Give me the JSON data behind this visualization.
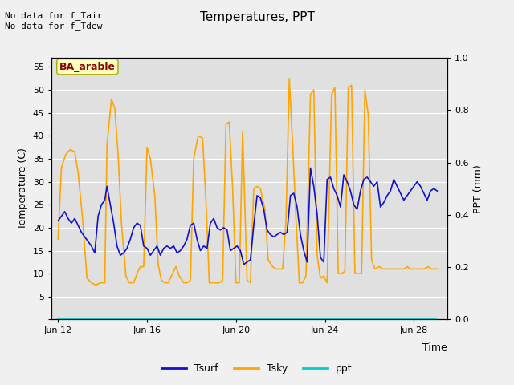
{
  "title": "Temperatures, PPT",
  "xlabel": "Time",
  "ylabel_left": "Temperature (C)",
  "ylabel_right": "PPT (mm)",
  "annotation_text": "No data for f_Tair\nNo data for f_Tdew",
  "box_label": "BA_arable",
  "ylim_left": [
    0,
    57
  ],
  "ylim_right": [
    0.0,
    1.0
  ],
  "yticks_left": [
    0,
    5,
    10,
    15,
    20,
    25,
    30,
    35,
    40,
    45,
    50,
    55
  ],
  "yticks_right": [
    0.0,
    0.2,
    0.4,
    0.6,
    0.8,
    1.0
  ],
  "color_tsurf": "#1111CC",
  "color_tsky": "#FFA500",
  "color_ppt": "#00CCCC",
  "legend_labels": [
    "Tsurf",
    "Tsky",
    "ppt"
  ],
  "background_color": "#f0f0f0",
  "plot_bg_color": "#e0e0e0",
  "grid_color": "#ffffff",
  "xtick_labels": [
    "Jun 12",
    "Jun 16",
    "Jun 20",
    "Jun 24",
    "Jun 28"
  ],
  "xtick_positions": [
    0,
    4,
    8,
    12,
    16
  ],
  "xlim": [
    -0.3,
    17.5
  ],
  "tsky_x": [
    0.0,
    0.15,
    0.35,
    0.55,
    0.75,
    0.9,
    1.1,
    1.3,
    1.5,
    1.7,
    1.9,
    2.1,
    2.2,
    2.4,
    2.55,
    2.7,
    2.85,
    3.05,
    3.2,
    3.4,
    3.55,
    3.7,
    3.85,
    4.0,
    4.15,
    4.35,
    4.5,
    4.65,
    4.8,
    4.95,
    5.1,
    5.3,
    5.45,
    5.65,
    5.8,
    5.95,
    6.1,
    6.3,
    6.5,
    6.65,
    6.8,
    6.95,
    7.1,
    7.25,
    7.4,
    7.55,
    7.7,
    7.85,
    8.0,
    8.15,
    8.3,
    8.5,
    8.65,
    8.8,
    8.95,
    9.1,
    9.3,
    9.45,
    9.65,
    9.8,
    9.95,
    10.1,
    10.25,
    10.4,
    10.55,
    10.7,
    10.85,
    11.0,
    11.15,
    11.35,
    11.5,
    11.65,
    11.8,
    11.95,
    12.1,
    12.3,
    12.45,
    12.6,
    12.75,
    12.9,
    13.05,
    13.2,
    13.35,
    13.5,
    13.65,
    13.8,
    13.95,
    14.1,
    14.25,
    14.45,
    14.6,
    14.75,
    14.9,
    15.05,
    15.2,
    15.4,
    15.55,
    15.7,
    15.85,
    16.0,
    16.15,
    16.3,
    16.45,
    16.65,
    16.8,
    16.95,
    17.1
  ],
  "tsky_y": [
    17.5,
    33.0,
    36.0,
    37.0,
    36.5,
    32.0,
    22.0,
    9.0,
    8.0,
    7.5,
    8.0,
    8.0,
    38.0,
    48.0,
    46.0,
    36.0,
    21.0,
    9.5,
    8.0,
    8.0,
    10.0,
    11.5,
    11.5,
    37.5,
    35.0,
    27.0,
    12.0,
    8.5,
    8.0,
    8.0,
    9.5,
    11.5,
    9.5,
    8.0,
    8.0,
    8.5,
    35.0,
    40.0,
    39.5,
    26.0,
    8.0,
    8.0,
    8.0,
    8.0,
    8.5,
    42.5,
    43.0,
    28.5,
    8.0,
    8.0,
    41.0,
    8.5,
    8.0,
    28.5,
    29.0,
    28.5,
    24.0,
    13.0,
    11.5,
    11.0,
    11.0,
    11.0,
    21.5,
    52.5,
    38.0,
    22.0,
    8.0,
    8.0,
    9.5,
    49.0,
    50.0,
    14.0,
    9.0,
    9.5,
    8.0,
    49.0,
    50.5,
    10.0,
    10.0,
    10.5,
    50.5,
    51.0,
    10.0,
    10.0,
    10.0,
    50.0,
    44.5,
    13.0,
    11.0,
    11.5,
    11.0,
    11.0,
    11.0,
    11.0,
    11.0,
    11.0,
    11.0,
    11.5,
    11.0,
    11.0,
    11.0,
    11.0,
    11.0,
    11.5,
    11.0,
    11.0,
    11.0
  ],
  "tsurf_x": [
    0.0,
    0.15,
    0.3,
    0.45,
    0.6,
    0.75,
    0.9,
    1.05,
    1.2,
    1.35,
    1.5,
    1.65,
    1.8,
    1.95,
    2.1,
    2.2,
    2.35,
    2.5,
    2.65,
    2.8,
    2.95,
    3.1,
    3.25,
    3.4,
    3.55,
    3.7,
    3.85,
    4.0,
    4.15,
    4.3,
    4.45,
    4.6,
    4.75,
    4.9,
    5.05,
    5.2,
    5.35,
    5.5,
    5.65,
    5.8,
    5.95,
    6.1,
    6.25,
    6.4,
    6.55,
    6.7,
    6.85,
    7.0,
    7.15,
    7.3,
    7.45,
    7.6,
    7.75,
    7.9,
    8.05,
    8.2,
    8.35,
    8.5,
    8.65,
    8.8,
    8.95,
    9.1,
    9.25,
    9.4,
    9.55,
    9.7,
    9.85,
    10.0,
    10.15,
    10.3,
    10.45,
    10.6,
    10.75,
    10.9,
    11.05,
    11.2,
    11.35,
    11.5,
    11.65,
    11.8,
    11.95,
    12.1,
    12.25,
    12.4,
    12.55,
    12.7,
    12.85,
    13.0,
    13.15,
    13.3,
    13.45,
    13.6,
    13.75,
    13.9,
    14.05,
    14.2,
    14.35,
    14.5,
    14.65,
    14.8,
    14.95,
    15.1,
    15.25,
    15.4,
    15.55,
    15.7,
    15.85,
    16.0,
    16.15,
    16.3,
    16.45,
    16.6,
    16.75,
    16.9,
    17.05
  ],
  "tsurf_y": [
    21.5,
    22.5,
    23.5,
    22.0,
    21.0,
    22.0,
    20.5,
    19.0,
    18.0,
    17.0,
    16.0,
    14.5,
    22.5,
    25.0,
    26.0,
    29.0,
    25.0,
    21.0,
    16.0,
    14.0,
    14.5,
    15.5,
    17.5,
    20.0,
    21.0,
    20.5,
    16.0,
    15.5,
    14.0,
    15.0,
    16.0,
    14.0,
    15.5,
    16.0,
    15.5,
    16.0,
    14.5,
    15.0,
    16.0,
    17.5,
    20.5,
    21.0,
    17.5,
    15.0,
    16.0,
    15.5,
    21.0,
    22.0,
    20.0,
    19.5,
    20.0,
    19.5,
    15.0,
    15.5,
    16.0,
    15.0,
    12.0,
    12.5,
    13.0,
    20.5,
    27.0,
    26.5,
    24.0,
    19.5,
    18.5,
    18.0,
    18.5,
    19.0,
    18.5,
    19.0,
    27.0,
    27.5,
    24.5,
    18.5,
    15.0,
    12.5,
    33.0,
    29.0,
    23.0,
    13.5,
    12.5,
    30.5,
    31.0,
    28.5,
    27.0,
    24.5,
    31.5,
    30.0,
    28.0,
    25.0,
    24.0,
    28.0,
    30.5,
    31.0,
    30.0,
    29.0,
    30.0,
    24.5,
    25.5,
    27.0,
    28.0,
    30.5,
    29.0,
    27.5,
    26.0,
    27.0,
    28.0,
    29.0,
    30.0,
    29.0,
    27.5,
    26.0,
    28.0,
    28.5,
    28.0
  ]
}
